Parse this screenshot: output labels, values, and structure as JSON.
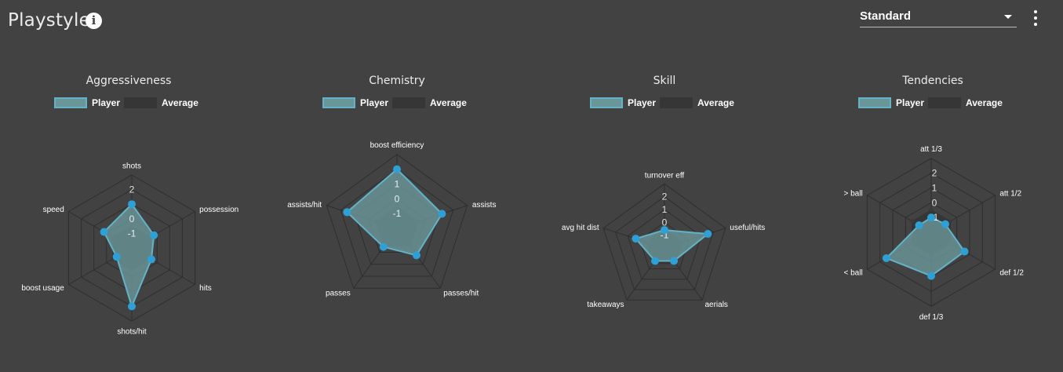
{
  "header": {
    "title": "Playstyle",
    "info_icon": "info-icon",
    "select_value": "Standard",
    "menu_icon": "more-vertical-icon"
  },
  "colors": {
    "background": "#424242",
    "player_fill": "#6a9698",
    "player_stroke": "#63b3c8",
    "player_point": "#2ea0d6",
    "average_fill": "#363636",
    "grid": "#2e2e2e"
  },
  "legend": {
    "player": "Player",
    "average": "Average"
  },
  "chart_data": [
    {
      "type": "radar",
      "title": "Aggressiveness",
      "axes": [
        "shots",
        "possession",
        "hits",
        "shots/hit",
        "boost usage",
        "speed"
      ],
      "scale": {
        "min": -2,
        "max": 2,
        "ticks": [
          "2",
          "1",
          "0",
          "-1"
        ]
      },
      "series": [
        {
          "name": "Player",
          "values": [
            1.0,
            -0.25,
            -0.45,
            2.0,
            -0.8,
            0.2
          ]
        },
        {
          "name": "Average",
          "values": [
            -0.5,
            -0.5,
            -0.5,
            -0.5,
            -0.5,
            -0.5
          ]
        }
      ]
    },
    {
      "type": "radar",
      "title": "Chemistry",
      "axes": [
        "boost efficiency",
        "assists",
        "passes/hit",
        "passes",
        "assists/hit"
      ],
      "scale": {
        "min": -2,
        "max": 2,
        "ticks": [
          "2",
          "1",
          "0",
          "-1"
        ]
      },
      "series": [
        {
          "name": "Player",
          "values": [
            2.0,
            1.2,
            0.25,
            -0.45,
            1.55
          ]
        },
        {
          "name": "Average",
          "values": [
            -0.5,
            -0.5,
            -0.5,
            -0.5,
            -0.5
          ]
        }
      ]
    },
    {
      "type": "radar",
      "title": "Skill",
      "axes": [
        "turnover eff",
        "useful/hits",
        "aerials",
        "takeaways",
        "avg hit dist"
      ],
      "scale": {
        "min": -2,
        "max": 2,
        "ticks": [
          "2",
          "1",
          "0",
          "-1"
        ]
      },
      "series": [
        {
          "name": "Player",
          "values": [
            -0.6,
            1.55,
            -0.75,
            -0.75,
            0.35
          ]
        },
        {
          "name": "Average",
          "values": [
            -0.5,
            -0.5,
            -0.5,
            -0.5,
            -0.5
          ]
        }
      ]
    },
    {
      "type": "radar",
      "title": "Tendencies",
      "axes": [
        "att 1/3",
        "att 1/2",
        "def 1/2",
        "def 1/3",
        "< ball",
        "> ball"
      ],
      "scale": {
        "min": -2,
        "max": 2,
        "ticks": [
          "2",
          "1",
          "0",
          "-1"
        ]
      },
      "series": [
        {
          "name": "Player",
          "values": [
            -1.0,
            -0.9,
            0.6,
            0.95,
            1.5,
            -1.05
          ]
        },
        {
          "name": "Average",
          "values": [
            -0.5,
            -0.5,
            -0.5,
            -0.5,
            -0.5,
            -0.5
          ]
        }
      ]
    }
  ]
}
